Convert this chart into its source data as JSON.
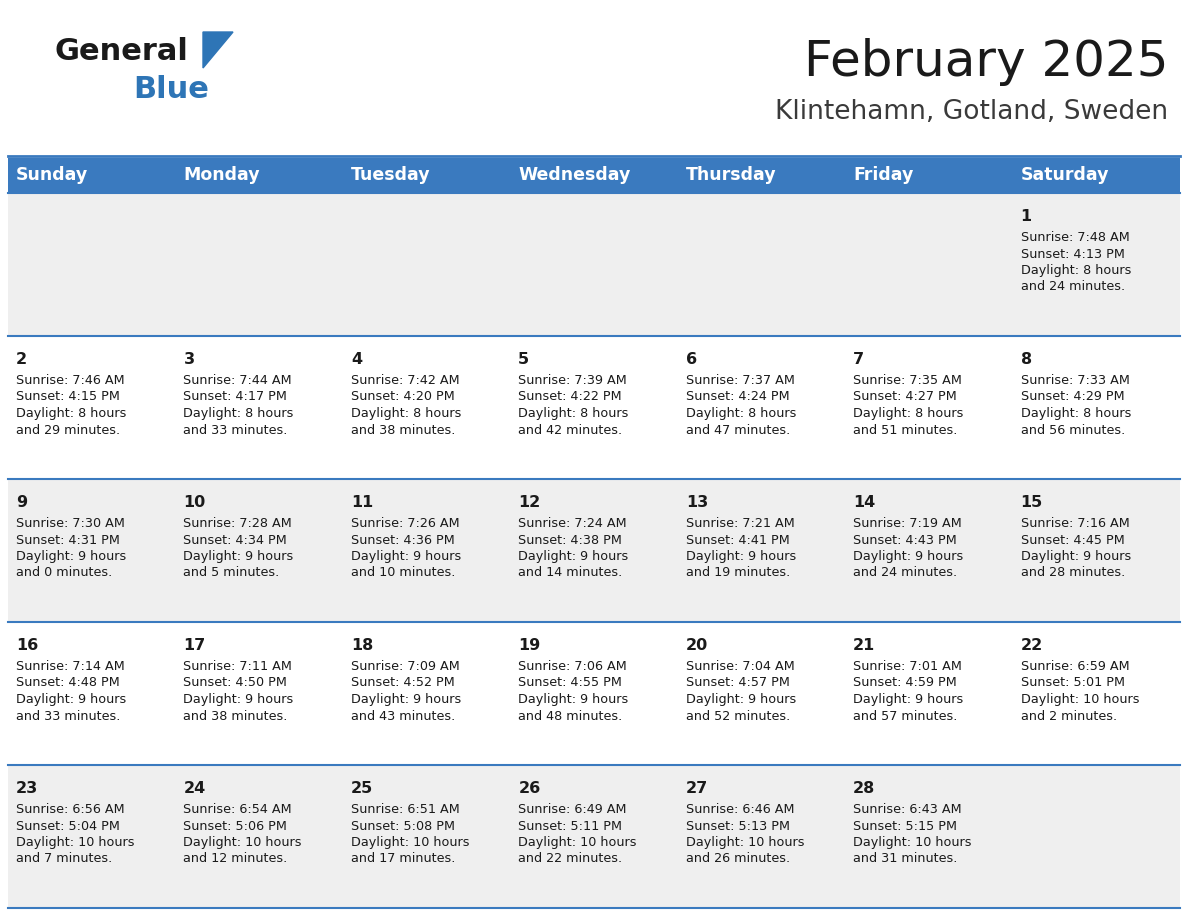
{
  "title": "February 2025",
  "subtitle": "Klintehamn, Gotland, Sweden",
  "header_bg": "#3a7abf",
  "header_text_color": "#ffffff",
  "row_bg_odd": "#efefef",
  "row_bg_even": "#ffffff",
  "day_names": [
    "Sunday",
    "Monday",
    "Tuesday",
    "Wednesday",
    "Thursday",
    "Friday",
    "Saturday"
  ],
  "days": [
    {
      "day": 1,
      "col": 6,
      "row": 0,
      "sunrise": "7:48 AM",
      "sunset": "4:13 PM",
      "daylight": "8 hours and 24 minutes."
    },
    {
      "day": 2,
      "col": 0,
      "row": 1,
      "sunrise": "7:46 AM",
      "sunset": "4:15 PM",
      "daylight": "8 hours and 29 minutes."
    },
    {
      "day": 3,
      "col": 1,
      "row": 1,
      "sunrise": "7:44 AM",
      "sunset": "4:17 PM",
      "daylight": "8 hours and 33 minutes."
    },
    {
      "day": 4,
      "col": 2,
      "row": 1,
      "sunrise": "7:42 AM",
      "sunset": "4:20 PM",
      "daylight": "8 hours and 38 minutes."
    },
    {
      "day": 5,
      "col": 3,
      "row": 1,
      "sunrise": "7:39 AM",
      "sunset": "4:22 PM",
      "daylight": "8 hours and 42 minutes."
    },
    {
      "day": 6,
      "col": 4,
      "row": 1,
      "sunrise": "7:37 AM",
      "sunset": "4:24 PM",
      "daylight": "8 hours and 47 minutes."
    },
    {
      "day": 7,
      "col": 5,
      "row": 1,
      "sunrise": "7:35 AM",
      "sunset": "4:27 PM",
      "daylight": "8 hours and 51 minutes."
    },
    {
      "day": 8,
      "col": 6,
      "row": 1,
      "sunrise": "7:33 AM",
      "sunset": "4:29 PM",
      "daylight": "8 hours and 56 minutes."
    },
    {
      "day": 9,
      "col": 0,
      "row": 2,
      "sunrise": "7:30 AM",
      "sunset": "4:31 PM",
      "daylight": "9 hours and 0 minutes."
    },
    {
      "day": 10,
      "col": 1,
      "row": 2,
      "sunrise": "7:28 AM",
      "sunset": "4:34 PM",
      "daylight": "9 hours and 5 minutes."
    },
    {
      "day": 11,
      "col": 2,
      "row": 2,
      "sunrise": "7:26 AM",
      "sunset": "4:36 PM",
      "daylight": "9 hours and 10 minutes."
    },
    {
      "day": 12,
      "col": 3,
      "row": 2,
      "sunrise": "7:24 AM",
      "sunset": "4:38 PM",
      "daylight": "9 hours and 14 minutes."
    },
    {
      "day": 13,
      "col": 4,
      "row": 2,
      "sunrise": "7:21 AM",
      "sunset": "4:41 PM",
      "daylight": "9 hours and 19 minutes."
    },
    {
      "day": 14,
      "col": 5,
      "row": 2,
      "sunrise": "7:19 AM",
      "sunset": "4:43 PM",
      "daylight": "9 hours and 24 minutes."
    },
    {
      "day": 15,
      "col": 6,
      "row": 2,
      "sunrise": "7:16 AM",
      "sunset": "4:45 PM",
      "daylight": "9 hours and 28 minutes."
    },
    {
      "day": 16,
      "col": 0,
      "row": 3,
      "sunrise": "7:14 AM",
      "sunset": "4:48 PM",
      "daylight": "9 hours and 33 minutes."
    },
    {
      "day": 17,
      "col": 1,
      "row": 3,
      "sunrise": "7:11 AM",
      "sunset": "4:50 PM",
      "daylight": "9 hours and 38 minutes."
    },
    {
      "day": 18,
      "col": 2,
      "row": 3,
      "sunrise": "7:09 AM",
      "sunset": "4:52 PM",
      "daylight": "9 hours and 43 minutes."
    },
    {
      "day": 19,
      "col": 3,
      "row": 3,
      "sunrise": "7:06 AM",
      "sunset": "4:55 PM",
      "daylight": "9 hours and 48 minutes."
    },
    {
      "day": 20,
      "col": 4,
      "row": 3,
      "sunrise": "7:04 AM",
      "sunset": "4:57 PM",
      "daylight": "9 hours and 52 minutes."
    },
    {
      "day": 21,
      "col": 5,
      "row": 3,
      "sunrise": "7:01 AM",
      "sunset": "4:59 PM",
      "daylight": "9 hours and 57 minutes."
    },
    {
      "day": 22,
      "col": 6,
      "row": 3,
      "sunrise": "6:59 AM",
      "sunset": "5:01 PM",
      "daylight": "10 hours and 2 minutes."
    },
    {
      "day": 23,
      "col": 0,
      "row": 4,
      "sunrise": "6:56 AM",
      "sunset": "5:04 PM",
      "daylight": "10 hours and 7 minutes."
    },
    {
      "day": 24,
      "col": 1,
      "row": 4,
      "sunrise": "6:54 AM",
      "sunset": "5:06 PM",
      "daylight": "10 hours and 12 minutes."
    },
    {
      "day": 25,
      "col": 2,
      "row": 4,
      "sunrise": "6:51 AM",
      "sunset": "5:08 PM",
      "daylight": "10 hours and 17 minutes."
    },
    {
      "day": 26,
      "col": 3,
      "row": 4,
      "sunrise": "6:49 AM",
      "sunset": "5:11 PM",
      "daylight": "10 hours and 22 minutes."
    },
    {
      "day": 27,
      "col": 4,
      "row": 4,
      "sunrise": "6:46 AM",
      "sunset": "5:13 PM",
      "daylight": "10 hours and 26 minutes."
    },
    {
      "day": 28,
      "col": 5,
      "row": 4,
      "sunrise": "6:43 AM",
      "sunset": "5:15 PM",
      "daylight": "10 hours and 31 minutes."
    }
  ],
  "n_rows": 5,
  "n_cols": 7,
  "logo_text_general": "General",
  "logo_text_blue": "Blue",
  "logo_triangle_color": "#2e75b6",
  "title_fontsize": 36,
  "subtitle_fontsize": 19,
  "header_fontsize": 12.5,
  "day_num_fontsize": 11.5,
  "info_fontsize": 9.2,
  "line_color": "#3a7abf"
}
